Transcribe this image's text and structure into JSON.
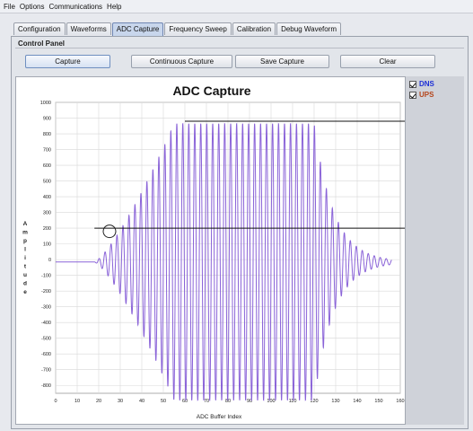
{
  "menu": [
    "File",
    "Options",
    "Communications",
    "Help"
  ],
  "tabs": [
    "Configuration",
    "Waveforms",
    "ADC Capture",
    "Frequency Sweep",
    "Calibration",
    "Debug Waveform"
  ],
  "active_tab": "ADC Capture",
  "control_panel": {
    "title": "Control Panel",
    "buttons": [
      "Capture",
      "Continuous Capture",
      "Save Capture",
      "Clear"
    ]
  },
  "legend": [
    {
      "label": "DNS",
      "checked": true,
      "color": "#1d2fd6"
    },
    {
      "label": "UPS",
      "checked": true,
      "color": "#b5451b"
    }
  ],
  "colors": {
    "trace": "#8a63d8",
    "trace_dark": "#5a3fb8"
  },
  "chart_data": {
    "type": "line",
    "title": "ADC Capture",
    "xlabel": "ADC Buffer Index",
    "ylabel": "Amplitude",
    "xlim": [
      0,
      160
    ],
    "ylim": [
      -850,
      1000
    ],
    "x_ticks": [
      0,
      10,
      20,
      30,
      40,
      50,
      60,
      70,
      80,
      90,
      100,
      110,
      120,
      130,
      140,
      150,
      160
    ],
    "y_ticks": [
      1000,
      900,
      800,
      700,
      600,
      500,
      400,
      300,
      200,
      100,
      0,
      -100,
      -200,
      -300,
      -400,
      -500,
      -600,
      -700,
      -800
    ],
    "grid": true,
    "series": [
      {
        "name": "DNS",
        "description_points": {
          "flat_until": 18,
          "ramp_end": 55,
          "plateau_peak": 880,
          "decay_start": 120,
          "end": 156,
          "cycles_per_unit": 0.36
        }
      }
    ],
    "annotations": [
      {
        "type": "hline",
        "y": 880,
        "x_start": 60,
        "x_end": 160
      },
      {
        "type": "hline",
        "y": 200,
        "x_start": 18,
        "x_end": 160
      },
      {
        "type": "circle",
        "x": 25,
        "y": 180
      }
    ]
  }
}
